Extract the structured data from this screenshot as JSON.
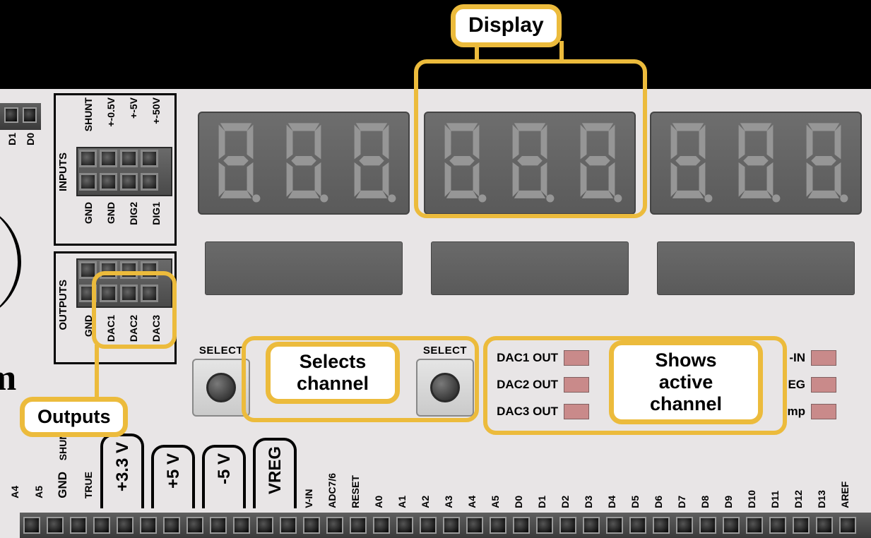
{
  "callouts": {
    "display": "Display",
    "outputs": "Outputs",
    "selects": "Selects\nchannel",
    "shows": "Shows\nactive\nchannel"
  },
  "inputs_block": {
    "title": "INPUTS",
    "top_labels": [
      "SHUNT",
      "+-0.5V",
      "+-5V",
      "+-50V"
    ],
    "bottom_labels": [
      "GND",
      "GND",
      "DIG2",
      "DIG1"
    ]
  },
  "outputs_block": {
    "title": "OUTPUTS",
    "labels": [
      "GND",
      "DAC1",
      "DAC2",
      "DAC3"
    ]
  },
  "left_edge_labels": [
    "D1",
    "D0"
  ],
  "select_label": "SELECT",
  "leds_left": [
    "DAC1 OUT",
    "DAC2 OUT",
    "DAC3 OUT"
  ],
  "leds_right_partial": [
    "-IN",
    "EG",
    "mp"
  ],
  "power_tabs": [
    "+3.3 V",
    "+5 V",
    "-5 V",
    "VREG"
  ],
  "bottom_left_labels": [
    "A4",
    "A5",
    "SHUNT",
    "GND",
    "TRUE"
  ],
  "bottom_right_labels": [
    "V-IN",
    "ADC7/6",
    "RESET",
    "A0",
    "A1",
    "A2",
    "A3",
    "A4",
    "A5",
    "D0",
    "D1",
    "D2",
    "D3",
    "D4",
    "D5",
    "D6",
    "D7",
    "D8",
    "D9",
    "D10",
    "D11",
    "D12",
    "D13",
    "AREF"
  ],
  "colors": {
    "board": "#e8e5e6",
    "highlight": "#ecbb3c",
    "led": "#c98a8a",
    "seg_bg": "#5f5f5f",
    "seg_on": "#969696"
  }
}
